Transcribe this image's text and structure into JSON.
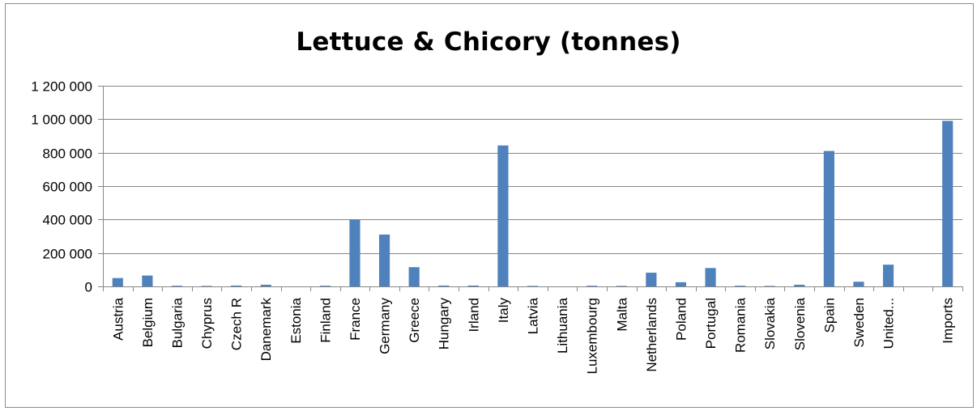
{
  "chart_data": {
    "type": "bar",
    "title": "Lettuce & Chicory (tonnes)",
    "xlabel": "",
    "ylabel": "",
    "ylim": [
      0,
      1200000
    ],
    "yticks": [
      0,
      200000,
      400000,
      600000,
      800000,
      1000000,
      1200000
    ],
    "ytick_labels": [
      "0",
      "200 000",
      "400 000",
      "600 000",
      "800 000",
      "1 000 000",
      "1 200 000"
    ],
    "grid": true,
    "legend": "none",
    "bar_color": "#4f81bd",
    "categories": [
      "Austria",
      "Belgium",
      "Bulgaria",
      "Chyprus",
      "Czech R",
      "Danemark",
      "Estonia",
      "Finland",
      "France",
      "Germany",
      "Greece",
      "Hungary",
      "Irland",
      "Italy",
      "Latvia",
      "Lithuania",
      "Luxembourg",
      "Malta",
      "Netherlands",
      "Poland",
      "Portugal",
      "Romania",
      "Slovakia",
      "Slovenia",
      "Spain",
      "Sweden",
      "United...",
      "",
      "Imports"
    ],
    "values": [
      50000,
      65000,
      4000,
      3000,
      5000,
      10000,
      0,
      4000,
      400000,
      310000,
      115000,
      5000,
      5000,
      843000,
      3000,
      0,
      4000,
      3000,
      82000,
      25000,
      110000,
      4000,
      3000,
      10000,
      810000,
      28000,
      130000,
      0,
      990000
    ]
  }
}
